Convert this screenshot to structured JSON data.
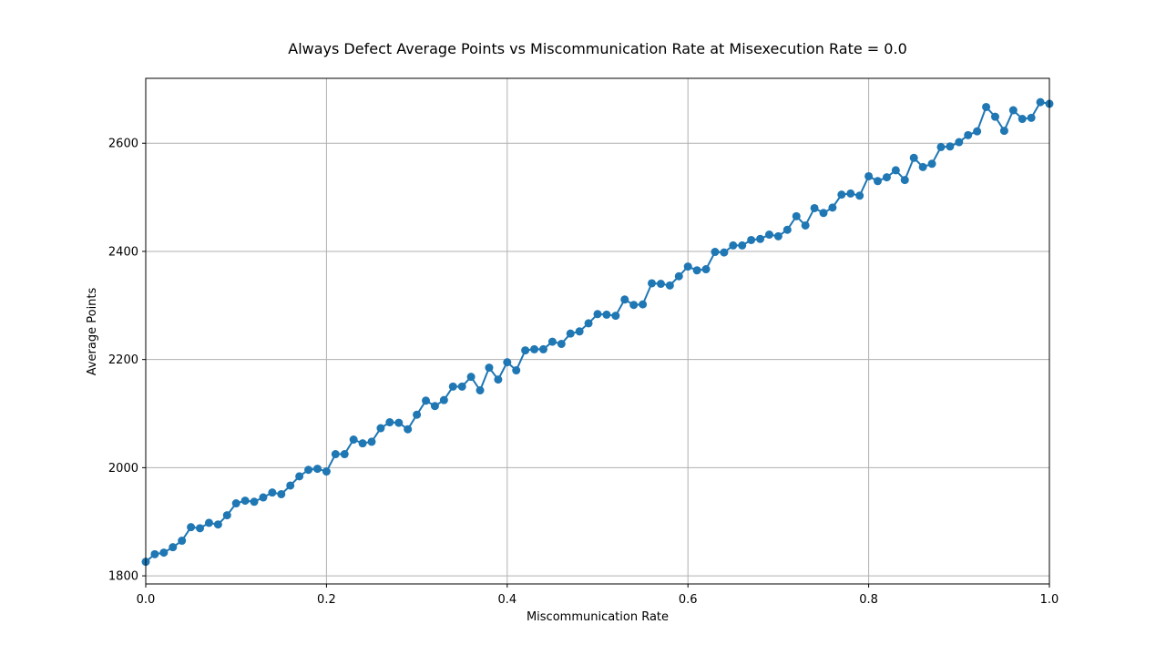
{
  "chart_data": {
    "type": "line",
    "title": "Always Defect Average Points vs Miscommunication Rate at Misexecution Rate = 0.0",
    "xlabel": "Miscommunication Rate",
    "ylabel": "Average Points",
    "xlim": [
      0.0,
      1.0
    ],
    "ylim": [
      1785,
      2720
    ],
    "xticks": [
      0.0,
      0.2,
      0.4,
      0.6,
      0.8,
      1.0
    ],
    "xtick_labels": [
      "0.0",
      "0.2",
      "0.4",
      "0.6",
      "0.8",
      "1.0"
    ],
    "yticks": [
      1800,
      2000,
      2200,
      2400,
      2600
    ],
    "ytick_labels": [
      "1800",
      "2000",
      "2200",
      "2400",
      "2600"
    ],
    "grid": true,
    "marker": "circle",
    "color": "#1f77b4",
    "series": [
      {
        "name": "Always Defect",
        "x": [
          0.0,
          0.01,
          0.02,
          0.03,
          0.04,
          0.05,
          0.06,
          0.07,
          0.08,
          0.09,
          0.1,
          0.11,
          0.12,
          0.13,
          0.14,
          0.15,
          0.16,
          0.17,
          0.18,
          0.19,
          0.2,
          0.21,
          0.22,
          0.23,
          0.24,
          0.25,
          0.26,
          0.27,
          0.28,
          0.29,
          0.3,
          0.31,
          0.32,
          0.33,
          0.34,
          0.35,
          0.36,
          0.37,
          0.38,
          0.39,
          0.4,
          0.41,
          0.42,
          0.43,
          0.44,
          0.45,
          0.46,
          0.47,
          0.48,
          0.49,
          0.5,
          0.51,
          0.52,
          0.53,
          0.54,
          0.55,
          0.56,
          0.57,
          0.58,
          0.59,
          0.6,
          0.61,
          0.62,
          0.63,
          0.64,
          0.65,
          0.66,
          0.67,
          0.68,
          0.69,
          0.7,
          0.71,
          0.72,
          0.73,
          0.74,
          0.75,
          0.76,
          0.77,
          0.78,
          0.79,
          0.8,
          0.81,
          0.82,
          0.83,
          0.84,
          0.85,
          0.86,
          0.87,
          0.88,
          0.89,
          0.9,
          0.91,
          0.92,
          0.93,
          0.94,
          0.95,
          0.96,
          0.97,
          0.98,
          0.99,
          1.0
        ],
        "values": [
          1826,
          1840,
          1843,
          1853,
          1865,
          1890,
          1888,
          1898,
          1895,
          1912,
          1934,
          1939,
          1937,
          1945,
          1954,
          1951,
          1967,
          1984,
          1996,
          1998,
          1993,
          2025,
          2025,
          2052,
          2045,
          2048,
          2073,
          2084,
          2083,
          2071,
          2098,
          2124,
          2114,
          2125,
          2150,
          2150,
          2168,
          2143,
          2185,
          2163,
          2195,
          2180,
          2217,
          2219,
          2219,
          2233,
          2229,
          2248,
          2252,
          2267,
          2284,
          2283,
          2281,
          2311,
          2301,
          2302,
          2341,
          2340,
          2337,
          2354,
          2372,
          2365,
          2367,
          2399,
          2398,
          2411,
          2411,
          2421,
          2423,
          2431,
          2428,
          2440,
          2465,
          2448,
          2480,
          2471,
          2481,
          2505,
          2507,
          2503,
          2539,
          2530,
          2537,
          2550,
          2532,
          2573,
          2556,
          2562,
          2593,
          2594,
          2602,
          2615,
          2622,
          2667,
          2649,
          2623,
          2661,
          2645,
          2647,
          2676,
          2673
        ]
      }
    ]
  }
}
